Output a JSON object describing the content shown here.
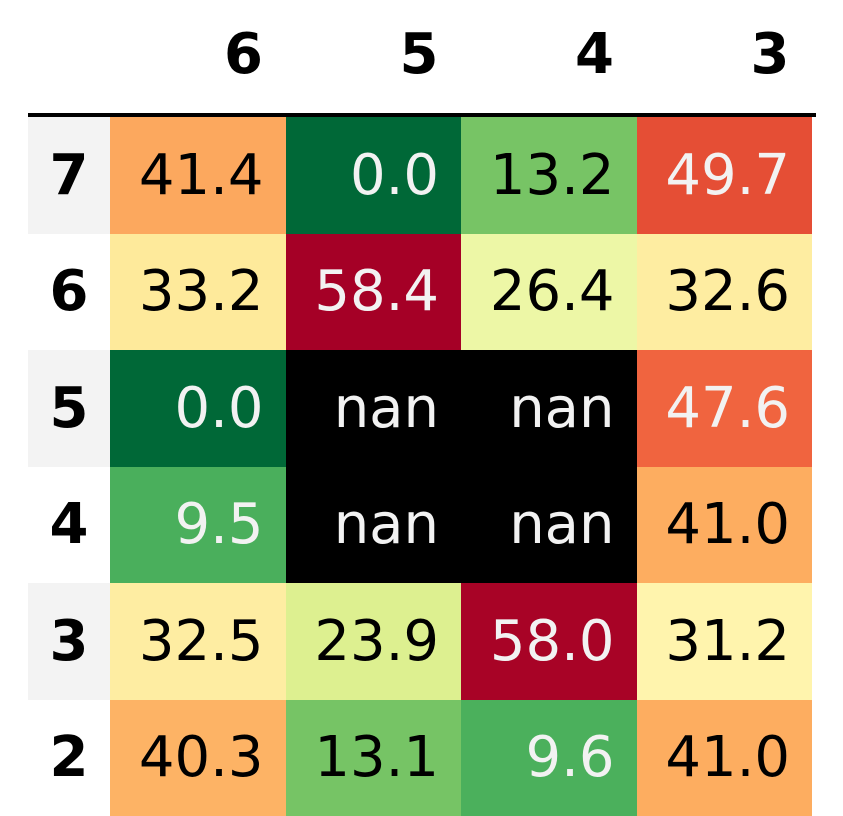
{
  "chart_data": {
    "type": "heatmap",
    "columns": [
      "6",
      "5",
      "4",
      "3"
    ],
    "rows": [
      "7",
      "6",
      "5",
      "4",
      "3",
      "2"
    ],
    "values": [
      [
        "41.4",
        "0.0",
        "13.2",
        "49.7"
      ],
      [
        "33.2",
        "58.4",
        "26.4",
        "32.6"
      ],
      [
        "0.0",
        "nan",
        "nan",
        "47.6"
      ],
      [
        "9.5",
        "nan",
        "nan",
        "41.0"
      ],
      [
        "32.5",
        "23.9",
        "58.0",
        "31.2"
      ],
      [
        "40.3",
        "13.1",
        "9.6",
        "41.0"
      ]
    ],
    "colormap": "RdYlGn_r",
    "vmin": 0,
    "vmax": 58.4,
    "nan_color": "#000000",
    "light_text_color": "#f2f2f2",
    "dark_text_color": "#000000",
    "row_stripe_color": "#f3f3f3"
  }
}
